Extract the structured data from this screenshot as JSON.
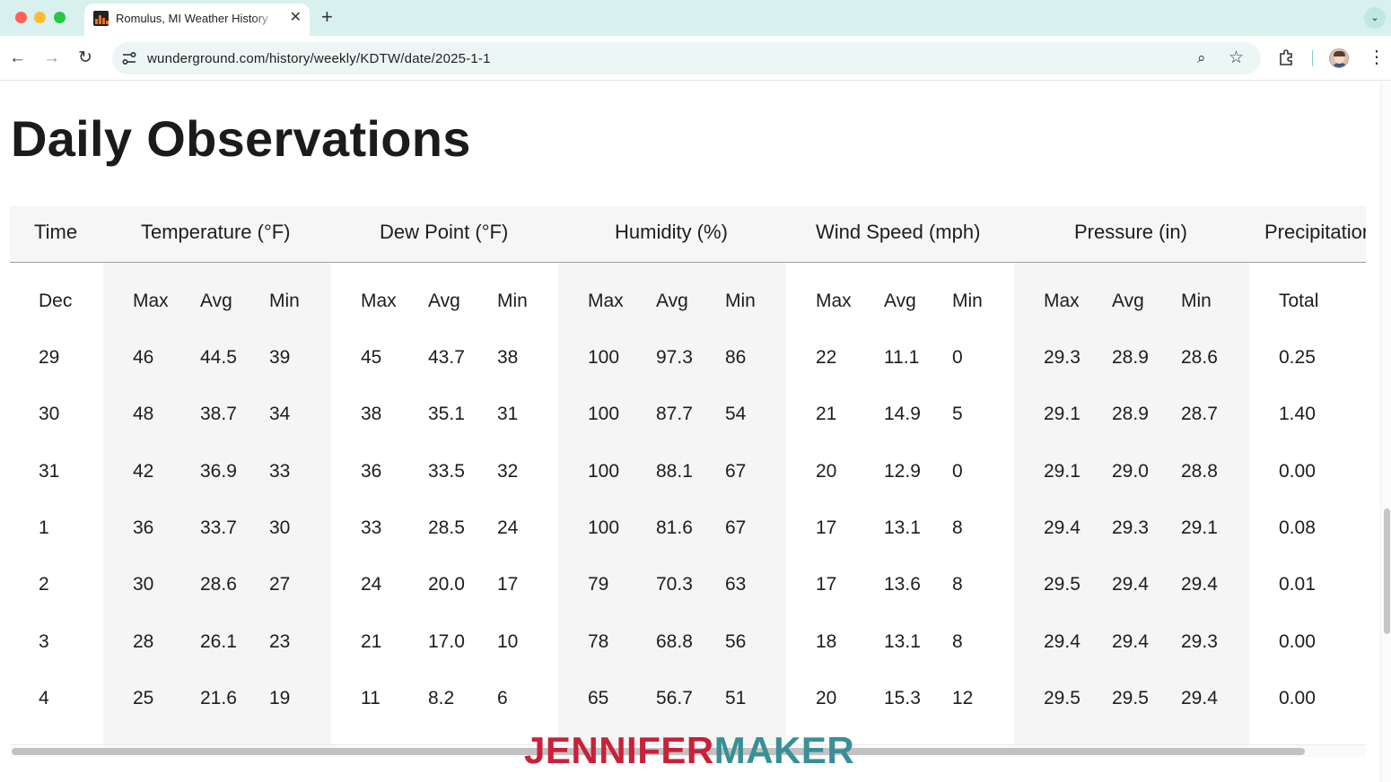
{
  "browser": {
    "tab_title": "Romulus, MI Weather History",
    "tab_close": "✕",
    "new_tab": "+",
    "tab_menu": "⌄",
    "url": "wunderground.com/history/weekly/KDTW/date/2025-1-1",
    "icons": {
      "back": "←",
      "forward": "→",
      "reload": "↻",
      "zoom": "⌕",
      "bookmark": "☆",
      "menu": "⋮"
    }
  },
  "page": {
    "title": "Daily Observations"
  },
  "table": {
    "time_header": "Time",
    "groups": [
      {
        "label": "Temperature (°F)",
        "sub": [
          "Max",
          "Avg",
          "Min"
        ]
      },
      {
        "label": "Dew Point (°F)",
        "sub": [
          "Max",
          "Avg",
          "Min"
        ]
      },
      {
        "label": "Humidity (%)",
        "sub": [
          "Max",
          "Avg",
          "Min"
        ]
      },
      {
        "label": "Wind Speed (mph)",
        "sub": [
          "Max",
          "Avg",
          "Min"
        ]
      },
      {
        "label": "Pressure (in)",
        "sub": [
          "Max",
          "Avg",
          "Min"
        ]
      },
      {
        "label": "Precipitation (in)",
        "sub": [
          "Total"
        ]
      }
    ],
    "month_label": "Dec",
    "rows": [
      {
        "day": "29",
        "values": [
          "46",
          "44.5",
          "39",
          "45",
          "43.7",
          "38",
          "100",
          "97.3",
          "86",
          "22",
          "11.1",
          "0",
          "29.3",
          "28.9",
          "28.6",
          "0.25"
        ]
      },
      {
        "day": "30",
        "values": [
          "48",
          "38.7",
          "34",
          "38",
          "35.1",
          "31",
          "100",
          "87.7",
          "54",
          "21",
          "14.9",
          "5",
          "29.1",
          "28.9",
          "28.7",
          "1.40"
        ]
      },
      {
        "day": "31",
        "values": [
          "42",
          "36.9",
          "33",
          "36",
          "33.5",
          "32",
          "100",
          "88.1",
          "67",
          "20",
          "12.9",
          "0",
          "29.1",
          "29.0",
          "28.8",
          "0.00"
        ]
      },
      {
        "day": "1",
        "values": [
          "36",
          "33.7",
          "30",
          "33",
          "28.5",
          "24",
          "100",
          "81.6",
          "67",
          "17",
          "13.1",
          "8",
          "29.4",
          "29.3",
          "29.1",
          "0.08"
        ]
      },
      {
        "day": "2",
        "values": [
          "30",
          "28.6",
          "27",
          "24",
          "20.0",
          "17",
          "79",
          "70.3",
          "63",
          "17",
          "13.6",
          "8",
          "29.5",
          "29.4",
          "29.4",
          "0.01"
        ]
      },
      {
        "day": "3",
        "values": [
          "28",
          "26.1",
          "23",
          "21",
          "17.0",
          "10",
          "78",
          "68.8",
          "56",
          "18",
          "13.1",
          "8",
          "29.4",
          "29.4",
          "29.3",
          "0.00"
        ]
      },
      {
        "day": "4",
        "values": [
          "25",
          "21.6",
          "19",
          "11",
          "8.2",
          "6",
          "65",
          "56.7",
          "51",
          "20",
          "15.3",
          "12",
          "29.5",
          "29.5",
          "29.4",
          "0.00"
        ]
      }
    ]
  },
  "watermark": {
    "part1": "JENNIFER",
    "part2": "MAKER"
  }
}
